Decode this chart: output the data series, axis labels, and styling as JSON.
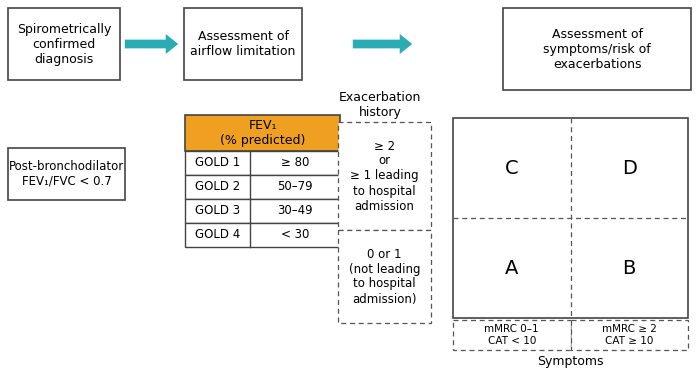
{
  "bg_color": "#ffffff",
  "arrow_color": "#2aacb4",
  "box_border_color": "#444444",
  "table_header_bg": "#f0a020",
  "table_header_text": "FEV₁\n(% predicted)",
  "table_rows": [
    [
      "GOLD 1",
      "≥ 80"
    ],
    [
      "GOLD 2",
      "50–79"
    ],
    [
      "GOLD 3",
      "30–49"
    ],
    [
      "GOLD 4",
      "< 30"
    ]
  ],
  "box1_text": "Spirometrically\nconfirmed\ndiagnosis",
  "box2_text": "Assessment of\nairflow limitation",
  "box3_text": "Assessment of\nsymptoms/risk of\nexacerbations",
  "box4_text": "Post-bronchodilator\nFEV₁/FVC < 0.7",
  "exacerb_label": "Exacerbation\nhistory",
  "exacerb_high_text": "≥ 2\nor\n≥ 1 leading\nto hospital\nadmission",
  "exacerb_low_text": "0 or 1\n(not leading\nto hospital\nadmission)",
  "quad_labels": [
    "C",
    "D",
    "A",
    "B"
  ],
  "symptoms_label": "Symptoms",
  "mmrc_left": "mMRC 0–1\nCAT < 10",
  "mmrc_right": "mMRC ≥ 2\nCAT ≥ 10",
  "dashed_color": "#555555",
  "table_line_color": "#444444"
}
